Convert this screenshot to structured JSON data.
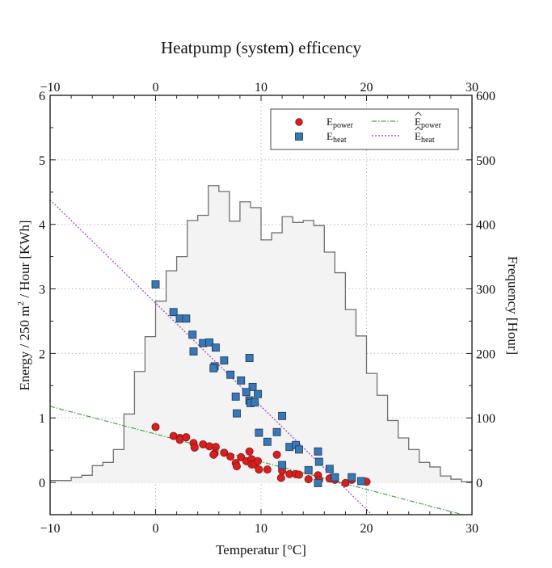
{
  "chart_data": {
    "type": "scatter",
    "title": "Heatpump (system) efficency",
    "xlabel": "Temperatur [°C]",
    "ylabel": "Energy / 250 m² / Hour [KWh]",
    "ylabel_parts": {
      "main": "Energy / 250 m",
      "sup": "2",
      "rest": " / Hour [KWh]"
    },
    "y2label": "Frequency [Hour]",
    "xlim": [
      -10,
      30
    ],
    "ylim": [
      -0.5,
      6
    ],
    "y2lim": [
      -50,
      600
    ],
    "xticks": [
      -10,
      0,
      10,
      20,
      30
    ],
    "xtick_labels": [
      "−10",
      "0",
      "10",
      "20",
      "30"
    ],
    "yticks": [
      0,
      1,
      2,
      3,
      4,
      5,
      6
    ],
    "y2ticks": [
      0,
      100,
      200,
      300,
      400,
      500,
      600
    ],
    "grid": true,
    "legend": {
      "placement": "top-right",
      "entries": [
        {
          "name": "E",
          "sub": "power",
          "kind": "marker-circle",
          "color": "#d62020"
        },
        {
          "name": "E",
          "sub": "heat",
          "kind": "marker-square",
          "color": "#3a78b5"
        },
        {
          "name": "E",
          "sub": "power",
          "hat": true,
          "kind": "line-dashdot",
          "color": "#4aa84a"
        },
        {
          "name": "E",
          "sub": "heat",
          "hat": true,
          "kind": "line-dotted",
          "color": "#a040b8"
        }
      ]
    },
    "histogram": {
      "name": "Frequency",
      "axis": "right",
      "bin_edges_start": -10,
      "bin_width": 1,
      "counts": [
        3,
        3,
        8,
        11,
        26,
        31,
        51,
        106,
        172,
        226,
        281,
        328,
        350,
        406,
        414,
        460,
        451,
        405,
        435,
        426,
        376,
        387,
        412,
        403,
        406,
        398,
        357,
        325,
        268,
        227,
        169,
        135,
        96,
        69,
        51,
        31,
        24,
        10,
        5,
        1
      ],
      "fill": "#f3f3f3",
      "stroke": "#707070"
    },
    "series": [
      {
        "name": "E_power",
        "color": "#d62020",
        "marker": "circle",
        "points": [
          [
            0,
            0.86
          ],
          [
            1.7,
            0.72
          ],
          [
            2.3,
            0.69
          ],
          [
            2.3,
            0.66
          ],
          [
            2.9,
            0.7
          ],
          [
            3.6,
            0.61
          ],
          [
            3.7,
            0.54
          ],
          [
            4.5,
            0.59
          ],
          [
            5.1,
            0.56
          ],
          [
            5.7,
            0.55
          ],
          [
            5.6,
            0.45
          ],
          [
            5.5,
            0.43
          ],
          [
            6.5,
            0.46
          ],
          [
            7.1,
            0.4
          ],
          [
            7.6,
            0.3
          ],
          [
            7.7,
            0.25
          ],
          [
            8.1,
            0.39
          ],
          [
            8.9,
            0.48
          ],
          [
            8.6,
            0.33
          ],
          [
            9.1,
            0.36
          ],
          [
            9.1,
            0.28
          ],
          [
            9.4,
            0.28
          ],
          [
            9.7,
            0.33
          ],
          [
            9.8,
            0.2
          ],
          [
            10.6,
            0.2
          ],
          [
            11.5,
            0.43
          ],
          [
            12.0,
            0.18
          ],
          [
            11.9,
            0.07
          ],
          [
            12.7,
            0.13
          ],
          [
            13.3,
            0.13
          ],
          [
            13.6,
            0.12
          ],
          [
            14.5,
            0.05
          ],
          [
            15.4,
            0.11
          ],
          [
            15.5,
            0.04
          ],
          [
            16.5,
            0.06
          ],
          [
            17.0,
            0.04
          ],
          [
            18.0,
            -0.01
          ],
          [
            18.6,
            0.04
          ],
          [
            19.5,
            0.02
          ],
          [
            20.0,
            0.01
          ]
        ]
      },
      {
        "name": "E_heat",
        "color": "#3a78b5",
        "marker": "square",
        "points": [
          [
            0,
            3.07
          ],
          [
            1.7,
            2.64
          ],
          [
            2.3,
            2.54
          ],
          [
            2.9,
            2.54
          ],
          [
            3.5,
            2.29
          ],
          [
            3.6,
            2.03
          ],
          [
            4.5,
            2.16
          ],
          [
            5.1,
            2.17
          ],
          [
            5.7,
            2.09
          ],
          [
            6.5,
            1.89
          ],
          [
            8.9,
            1.93
          ],
          [
            5.6,
            1.8
          ],
          [
            5.5,
            1.77
          ],
          [
            7.1,
            1.67
          ],
          [
            8.1,
            1.58
          ],
          [
            9.2,
            1.48
          ],
          [
            8.6,
            1.4
          ],
          [
            7.6,
            1.33
          ],
          [
            9.7,
            1.37
          ],
          [
            8.9,
            1.27
          ],
          [
            9.0,
            1.23
          ],
          [
            9.4,
            1.24
          ],
          [
            7.7,
            1.07
          ],
          [
            12.0,
            1.03
          ],
          [
            9.8,
            0.77
          ],
          [
            11.5,
            0.78
          ],
          [
            10.6,
            0.63
          ],
          [
            12.7,
            0.55
          ],
          [
            13.3,
            0.58
          ],
          [
            13.6,
            0.51
          ],
          [
            15.4,
            0.48
          ],
          [
            15.5,
            0.32
          ],
          [
            12.0,
            0.27
          ],
          [
            14.5,
            0.19
          ],
          [
            16.5,
            0.21
          ],
          [
            17.0,
            0.08
          ],
          [
            15.4,
            -0.01
          ],
          [
            18.6,
            0.08
          ],
          [
            19.5,
            0.02
          ]
        ]
      }
    ],
    "fits": [
      {
        "name": "E_power_hat",
        "color": "#4aa84a",
        "style": "dashdot",
        "intercept": 0.75,
        "slope": -0.0429
      },
      {
        "name": "E_heat_hat",
        "color": "#a040b8",
        "style": "dotted",
        "intercept": 2.78,
        "slope": -0.16
      }
    ]
  }
}
